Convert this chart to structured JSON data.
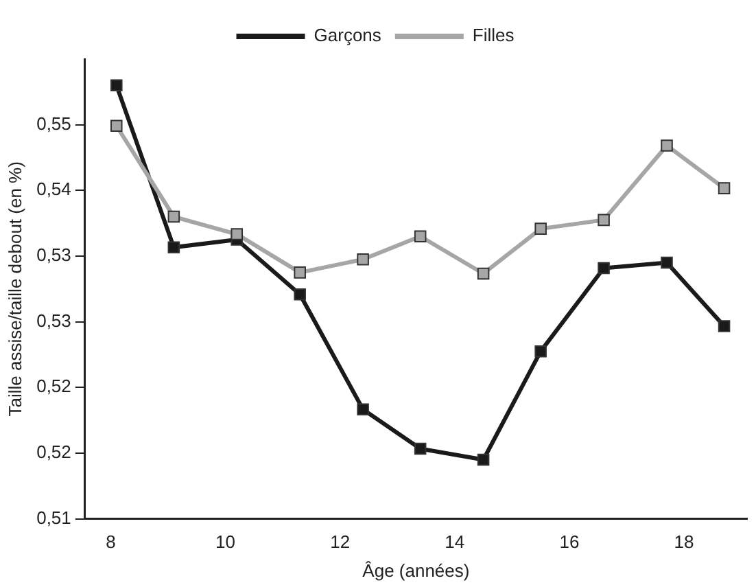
{
  "chart_data": {
    "type": "line",
    "xlabel": "Âge (années)",
    "ylabel": "Taille assise/taille debout (en %)",
    "x": [
      8.1,
      9.1,
      10.2,
      11.3,
      12.4,
      13.4,
      14.5,
      15.5,
      16.6,
      17.7,
      18.7
    ],
    "series": [
      {
        "name": "Garçons",
        "color": "#1a1a1a",
        "values": [
          0.5496,
          0.5348,
          0.5355,
          0.5305,
          0.52,
          0.5164,
          0.5154,
          0.5253,
          0.5329,
          0.5334,
          0.5276
        ]
      },
      {
        "name": "Filles",
        "color": "#a6a6a6",
        "values": [
          0.5459,
          0.5376,
          0.536,
          0.5325,
          0.5337,
          0.5358,
          0.5324,
          0.5365,
          0.5373,
          0.5441,
          0.5402
        ]
      }
    ],
    "xlim": [
      7.55,
      19.1
    ],
    "xticks": [
      8,
      10,
      12,
      14,
      16,
      18
    ],
    "ylim": [
      0.51,
      0.552
    ],
    "yticks": [
      {
        "value": 0.51,
        "label": "0,51"
      },
      {
        "value": 0.516,
        "label": "0,52"
      },
      {
        "value": 0.522,
        "label": "0,52"
      },
      {
        "value": 0.528,
        "label": "0,53"
      },
      {
        "value": 0.534,
        "label": "0,53"
      },
      {
        "value": 0.54,
        "label": "0,54"
      },
      {
        "value": 0.546,
        "label": "0,55"
      }
    ],
    "grid": false,
    "legend": "top",
    "marker": "square",
    "line_style": "solid"
  }
}
